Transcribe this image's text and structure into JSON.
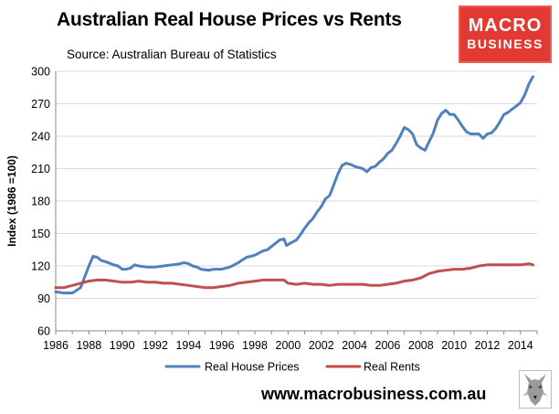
{
  "header": {
    "title": "Australian Real House Prices vs Rents",
    "source": "Source: Australian Bureau of Statistics"
  },
  "logo": {
    "line1": "MACRO",
    "line2": "BUSINESS",
    "background": "#e23a32"
  },
  "footer": {
    "website": "www.macrobusiness.com.au",
    "mascot_icon": "wolf-icon"
  },
  "chart_data": {
    "type": "line",
    "title": "Australian Real House Prices vs Rents",
    "xlabel": "",
    "ylabel": "Index (1986 =100)",
    "xlim": [
      1986,
      2015
    ],
    "ylim": [
      60,
      300
    ],
    "x_ticks": [
      "1986",
      "1988",
      "1990",
      "1992",
      "1994",
      "1996",
      "1998",
      "2000",
      "2002",
      "2004",
      "2006",
      "2008",
      "2010",
      "2012",
      "2014"
    ],
    "y_ticks": [
      "300",
      "270",
      "240",
      "210",
      "180",
      "150",
      "120",
      "90",
      "60"
    ],
    "grid": "horizontal",
    "legend_position": "bottom",
    "series": [
      {
        "name": "Real House Prices",
        "color": "#4f81bd",
        "points": [
          [
            1986.0,
            96
          ],
          [
            1986.5,
            95
          ],
          [
            1987.0,
            95
          ],
          [
            1987.5,
            100
          ],
          [
            1987.75,
            110
          ],
          [
            1988.0,
            120
          ],
          [
            1988.25,
            129
          ],
          [
            1988.5,
            128
          ],
          [
            1988.75,
            125
          ],
          [
            1989.0,
            124
          ],
          [
            1989.5,
            121
          ],
          [
            1989.75,
            120
          ],
          [
            1990.0,
            117
          ],
          [
            1990.25,
            117
          ],
          [
            1990.5,
            118
          ],
          [
            1990.75,
            121
          ],
          [
            1991.0,
            120
          ],
          [
            1991.5,
            119
          ],
          [
            1992.0,
            119
          ],
          [
            1992.5,
            120
          ],
          [
            1993.0,
            121
          ],
          [
            1993.5,
            122
          ],
          [
            1993.75,
            123
          ],
          [
            1994.0,
            122
          ],
          [
            1994.25,
            120
          ],
          [
            1994.5,
            119
          ],
          [
            1994.75,
            117
          ],
          [
            1995.25,
            116
          ],
          [
            1995.5,
            117
          ],
          [
            1996.0,
            117
          ],
          [
            1996.5,
            119
          ],
          [
            1997.0,
            123
          ],
          [
            1997.5,
            128
          ],
          [
            1997.75,
            129
          ],
          [
            1998.0,
            130
          ],
          [
            1998.25,
            132
          ],
          [
            1998.5,
            134
          ],
          [
            1998.75,
            135
          ],
          [
            1999.0,
            138
          ],
          [
            1999.25,
            141
          ],
          [
            1999.5,
            144
          ],
          [
            1999.75,
            145
          ],
          [
            1999.9,
            139
          ],
          [
            2000.25,
            142
          ],
          [
            2000.5,
            144
          ],
          [
            2000.75,
            149
          ],
          [
            2001.0,
            155
          ],
          [
            2001.25,
            160
          ],
          [
            2001.5,
            164
          ],
          [
            2001.75,
            170
          ],
          [
            2002.0,
            175
          ],
          [
            2002.25,
            182
          ],
          [
            2002.5,
            185
          ],
          [
            2002.75,
            195
          ],
          [
            2003.0,
            205
          ],
          [
            2003.25,
            213
          ],
          [
            2003.5,
            215
          ],
          [
            2003.75,
            214
          ],
          [
            2004.0,
            212
          ],
          [
            2004.25,
            211
          ],
          [
            2004.5,
            210
          ],
          [
            2004.75,
            207
          ],
          [
            2005.0,
            211
          ],
          [
            2005.25,
            212
          ],
          [
            2005.5,
            216
          ],
          [
            2005.75,
            219
          ],
          [
            2006.0,
            224
          ],
          [
            2006.25,
            227
          ],
          [
            2006.5,
            233
          ],
          [
            2006.75,
            240
          ],
          [
            2007.0,
            248
          ],
          [
            2007.25,
            246
          ],
          [
            2007.5,
            242
          ],
          [
            2007.75,
            232
          ],
          [
            2008.0,
            229
          ],
          [
            2008.25,
            227
          ],
          [
            2008.5,
            235
          ],
          [
            2008.75,
            243
          ],
          [
            2009.0,
            255
          ],
          [
            2009.25,
            261
          ],
          [
            2009.5,
            264
          ],
          [
            2009.75,
            260
          ],
          [
            2010.0,
            260
          ],
          [
            2010.25,
            255
          ],
          [
            2010.5,
            249
          ],
          [
            2010.75,
            244
          ],
          [
            2011.0,
            242
          ],
          [
            2011.25,
            242
          ],
          [
            2011.5,
            242
          ],
          [
            2011.75,
            238
          ],
          [
            2012.0,
            242
          ],
          [
            2012.25,
            243
          ],
          [
            2012.5,
            247
          ],
          [
            2012.75,
            253
          ],
          [
            2013.0,
            260
          ],
          [
            2013.25,
            262
          ],
          [
            2013.5,
            265
          ],
          [
            2013.75,
            268
          ],
          [
            2014.0,
            271
          ],
          [
            2014.25,
            278
          ],
          [
            2014.5,
            288
          ],
          [
            2014.75,
            295
          ]
        ]
      },
      {
        "name": "Real Rents",
        "color": "#c0504d",
        "points": [
          [
            1986.0,
            100
          ],
          [
            1986.5,
            100
          ],
          [
            1987.0,
            102
          ],
          [
            1987.5,
            104
          ],
          [
            1988.0,
            106
          ],
          [
            1988.5,
            107
          ],
          [
            1989.0,
            107
          ],
          [
            1989.5,
            106
          ],
          [
            1990.0,
            105
          ],
          [
            1990.5,
            105
          ],
          [
            1991.0,
            106
          ],
          [
            1991.5,
            105
          ],
          [
            1992.0,
            105
          ],
          [
            1992.5,
            104
          ],
          [
            1993.0,
            104
          ],
          [
            1993.5,
            103
          ],
          [
            1994.0,
            102
          ],
          [
            1994.5,
            101
          ],
          [
            1995.0,
            100
          ],
          [
            1995.5,
            100
          ],
          [
            1996.0,
            101
          ],
          [
            1996.5,
            102
          ],
          [
            1997.0,
            104
          ],
          [
            1997.5,
            105
          ],
          [
            1998.0,
            106
          ],
          [
            1998.5,
            107
          ],
          [
            1999.0,
            107
          ],
          [
            1999.5,
            107
          ],
          [
            1999.75,
            107
          ],
          [
            2000.0,
            104
          ],
          [
            2000.5,
            103
          ],
          [
            2001.0,
            104
          ],
          [
            2001.5,
            103
          ],
          [
            2002.0,
            103
          ],
          [
            2002.5,
            102
          ],
          [
            2003.0,
            103
          ],
          [
            2003.5,
            103
          ],
          [
            2004.0,
            103
          ],
          [
            2004.5,
            103
          ],
          [
            2005.0,
            102
          ],
          [
            2005.5,
            102
          ],
          [
            2006.0,
            103
          ],
          [
            2006.5,
            104
          ],
          [
            2007.0,
            106
          ],
          [
            2007.5,
            107
          ],
          [
            2008.0,
            109
          ],
          [
            2008.5,
            113
          ],
          [
            2009.0,
            115
          ],
          [
            2009.5,
            116
          ],
          [
            2010.0,
            117
          ],
          [
            2010.5,
            117
          ],
          [
            2011.0,
            118
          ],
          [
            2011.5,
            120
          ],
          [
            2012.0,
            121
          ],
          [
            2012.5,
            121
          ],
          [
            2013.0,
            121
          ],
          [
            2013.5,
            121
          ],
          [
            2014.0,
            121
          ],
          [
            2014.5,
            122
          ],
          [
            2014.75,
            121
          ]
        ]
      }
    ]
  }
}
